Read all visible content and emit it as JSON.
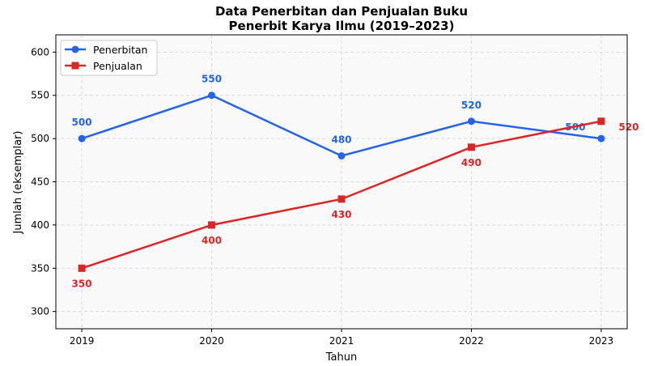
{
  "chart_data": {
    "type": "line",
    "title": "Data Penerbitan dan Penjualan Buku",
    "subtitle": "Penerbit Karya Ilmu (2019–2023)",
    "xlabel": "Tahun",
    "ylabel": "Jumlah (eksemplar)",
    "x": [
      2019,
      2020,
      2021,
      2022,
      2023
    ],
    "xticks": [
      "2019",
      "2020",
      "2021",
      "2022",
      "2023"
    ],
    "yticks": [
      "300",
      "350",
      "400",
      "450",
      "500",
      "550",
      "600"
    ],
    "ylim": [
      280,
      620
    ],
    "xlim": [
      2018.8,
      2023.2
    ],
    "grid": true,
    "legend_position": "top-left",
    "series": [
      {
        "name": "Penerbitan",
        "values": [
          500,
          550,
          480,
          520,
          500
        ],
        "color": "#2563eb",
        "marker": "circle",
        "labels": [
          "500",
          "550",
          "480",
          "520",
          "500"
        ]
      },
      {
        "name": "Penjualan",
        "values": [
          350,
          400,
          430,
          490,
          520
        ],
        "color": "#dc2626",
        "marker": "square",
        "labels": [
          "350",
          "400",
          "430",
          "490",
          "520"
        ]
      }
    ]
  }
}
